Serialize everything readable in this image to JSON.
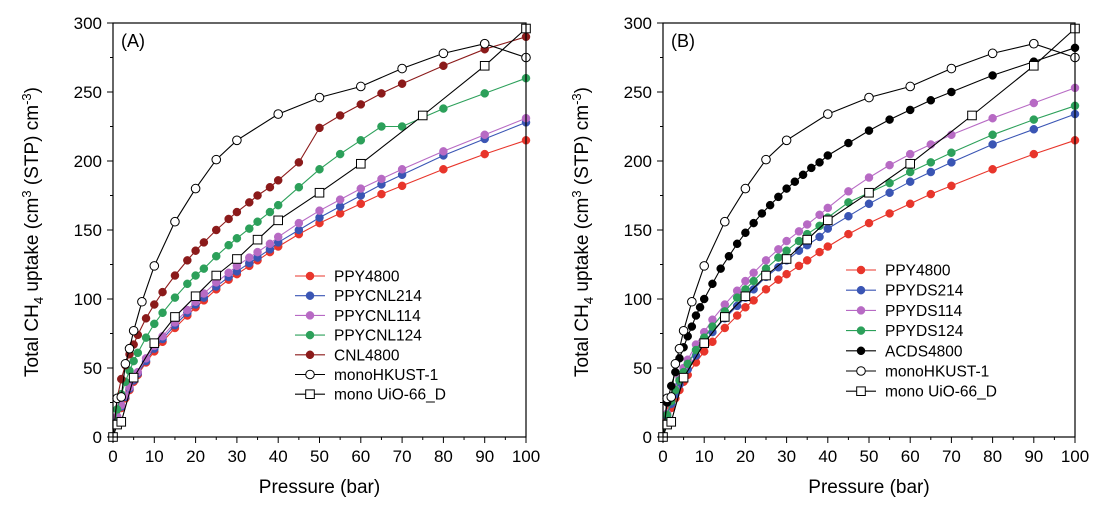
{
  "chart_data": [
    {
      "type": "line",
      "panel_label": "(A)",
      "xlabel": "Pressure (bar)",
      "ylabel": {
        "pre": "Total CH",
        "sub1": "4",
        "mid": " uptake (cm",
        "sup1": "3",
        "mid2": " (STP) cm",
        "sup2": "-3",
        "post": ")"
      },
      "xlim": [
        0,
        100
      ],
      "ylim": [
        0,
        300
      ],
      "xticks": [
        0,
        10,
        20,
        30,
        40,
        50,
        60,
        70,
        80,
        90,
        100
      ],
      "yticks": [
        0,
        50,
        100,
        150,
        200,
        250,
        300
      ],
      "grid": false,
      "legend_position": "bottom-right",
      "series": [
        {
          "name": "PPY4800",
          "color": "#e8352b",
          "marker": "filled",
          "x": [
            0,
            1,
            2,
            3,
            4,
            5,
            6,
            8,
            10,
            12,
            15,
            18,
            20,
            22,
            25,
            28,
            30,
            33,
            35,
            38,
            40,
            45,
            50,
            55,
            60,
            65,
            70,
            80,
            90,
            100
          ],
          "y": [
            0,
            13,
            21,
            28,
            34,
            40,
            45,
            54,
            62,
            69,
            79,
            88,
            94,
            99,
            107,
            114,
            118,
            124,
            128,
            134,
            138,
            147,
            155,
            162,
            169,
            176,
            182,
            194,
            205,
            215
          ]
        },
        {
          "name": "PPYCNL214",
          "color": "#3a55b4",
          "marker": "filled",
          "x": [
            0,
            1,
            2,
            3,
            4,
            5,
            6,
            8,
            10,
            12,
            15,
            18,
            20,
            22,
            25,
            28,
            30,
            33,
            35,
            38,
            40,
            45,
            50,
            55,
            60,
            65,
            70,
            80,
            90,
            100
          ],
          "y": [
            0,
            14,
            22,
            29,
            35,
            41,
            46,
            55,
            64,
            71,
            81,
            90,
            96,
            101,
            109,
            116,
            120,
            126,
            130,
            136,
            141,
            150,
            159,
            167,
            175,
            183,
            190,
            204,
            216,
            228
          ]
        },
        {
          "name": "PPYCNL114",
          "color": "#b76ac4",
          "marker": "filled",
          "x": [
            0,
            1,
            2,
            3,
            4,
            5,
            6,
            8,
            10,
            12,
            15,
            18,
            20,
            22,
            25,
            28,
            30,
            33,
            35,
            38,
            40,
            45,
            50,
            55,
            60,
            65,
            70,
            80,
            90,
            100
          ],
          "y": [
            0,
            15,
            23,
            30,
            36,
            42,
            47,
            57,
            66,
            73,
            83,
            92,
            98,
            104,
            112,
            119,
            124,
            130,
            134,
            140,
            145,
            155,
            164,
            172,
            180,
            187,
            194,
            207,
            219,
            231
          ]
        },
        {
          "name": "PPYCNL124",
          "color": "#2ca05a",
          "marker": "filled",
          "x": [
            0,
            1,
            2,
            3,
            4,
            5,
            6,
            8,
            10,
            12,
            15,
            18,
            20,
            22,
            25,
            28,
            30,
            33,
            35,
            38,
            40,
            45,
            50,
            55,
            60,
            65,
            70,
            80,
            90,
            100
          ],
          "y": [
            0,
            20,
            31,
            40,
            48,
            55,
            61,
            72,
            82,
            90,
            101,
            111,
            117,
            122,
            131,
            139,
            144,
            151,
            156,
            163,
            168,
            181,
            194,
            205,
            215,
            225,
            225,
            238,
            249,
            260
          ]
        },
        {
          "name": "CNL4800",
          "color": "#8b1a1a",
          "marker": "filled",
          "x": [
            0,
            1,
            2,
            3,
            4,
            5,
            6,
            8,
            10,
            12,
            15,
            18,
            20,
            22,
            25,
            28,
            30,
            33,
            35,
            38,
            40,
            45,
            50,
            55,
            60,
            65,
            70,
            80,
            90,
            100
          ],
          "y": [
            0,
            28,
            42,
            52,
            60,
            67,
            74,
            86,
            96,
            105,
            117,
            128,
            135,
            141,
            150,
            158,
            163,
            170,
            175,
            181,
            186,
            199,
            224,
            233,
            241,
            249,
            256,
            269,
            281,
            290
          ]
        },
        {
          "name": "monoHKUST-1",
          "color": "#000000",
          "marker": "open-circle",
          "x": [
            0,
            1,
            2,
            3,
            4,
            5,
            7,
            10,
            15,
            20,
            25,
            30,
            40,
            50,
            60,
            70,
            80,
            90,
            100
          ],
          "y": [
            0,
            28,
            29,
            53,
            64,
            77,
            98,
            124,
            156,
            180,
            201,
            215,
            234,
            246,
            254,
            267,
            278,
            285,
            275
          ]
        },
        {
          "name": "mono UiO-66_D",
          "color": "#000000",
          "marker": "open-square",
          "x": [
            0,
            1,
            2,
            5,
            10,
            15,
            20,
            25,
            30,
            35,
            40,
            50,
            60,
            75,
            90,
            100
          ],
          "y": [
            0,
            9,
            11,
            43,
            68,
            87,
            102,
            117,
            129,
            143,
            157,
            177,
            198,
            233,
            269,
            296
          ]
        }
      ]
    },
    {
      "type": "line",
      "panel_label": "(B)",
      "xlabel": "Pressure (bar)",
      "ylabel": {
        "pre": "Total CH",
        "sub1": "4",
        "mid": " uptake (cm",
        "sup1": "3",
        "mid2": " (STP) cm",
        "sup2": "-3",
        "post": ")"
      },
      "xlim": [
        0,
        100
      ],
      "ylim": [
        0,
        300
      ],
      "xticks": [
        0,
        10,
        20,
        30,
        40,
        50,
        60,
        70,
        80,
        90,
        100
      ],
      "yticks": [
        0,
        50,
        100,
        150,
        200,
        250,
        300
      ],
      "grid": false,
      "legend_position": "bottom-right",
      "series": [
        {
          "name": "PPY4800",
          "color": "#e8352b",
          "marker": "filled",
          "x": [
            0,
            1,
            2,
            3,
            4,
            5,
            6,
            8,
            10,
            12,
            15,
            18,
            20,
            22,
            25,
            28,
            30,
            33,
            35,
            38,
            40,
            45,
            50,
            55,
            60,
            65,
            70,
            80,
            90,
            100
          ],
          "y": [
            0,
            13,
            21,
            28,
            34,
            40,
            45,
            54,
            62,
            69,
            79,
            88,
            94,
            99,
            107,
            114,
            118,
            124,
            128,
            134,
            138,
            147,
            155,
            162,
            169,
            176,
            182,
            194,
            205,
            215
          ]
        },
        {
          "name": "PPYDS214",
          "color": "#3a55b4",
          "marker": "filled",
          "x": [
            0,
            1,
            2,
            3,
            4,
            5,
            6,
            8,
            10,
            12,
            15,
            18,
            20,
            22,
            25,
            28,
            30,
            33,
            35,
            38,
            40,
            45,
            50,
            55,
            60,
            65,
            70,
            80,
            90,
            100
          ],
          "y": [
            0,
            15,
            24,
            31,
            38,
            44,
            49,
            59,
            68,
            76,
            86,
            95,
            101,
            107,
            116,
            123,
            128,
            135,
            139,
            145,
            151,
            160,
            169,
            177,
            185,
            192,
            199,
            212,
            223,
            234
          ]
        },
        {
          "name": "PPYDS114",
          "color": "#b76ac4",
          "marker": "filled",
          "x": [
            0,
            1,
            2,
            3,
            4,
            5,
            6,
            8,
            10,
            12,
            15,
            18,
            20,
            22,
            25,
            28,
            30,
            33,
            35,
            38,
            40,
            45,
            50,
            55,
            60,
            65,
            70,
            80,
            90,
            100
          ],
          "y": [
            0,
            17,
            27,
            35,
            43,
            50,
            56,
            67,
            76,
            85,
            96,
            106,
            113,
            119,
            128,
            136,
            142,
            149,
            154,
            161,
            166,
            178,
            188,
            197,
            205,
            212,
            219,
            231,
            242,
            253
          ]
        },
        {
          "name": "PPYDS124",
          "color": "#2ca05a",
          "marker": "filled",
          "x": [
            0,
            1,
            2,
            3,
            4,
            5,
            6,
            8,
            10,
            12,
            15,
            18,
            20,
            22,
            25,
            28,
            30,
            33,
            35,
            38,
            40,
            45,
            50,
            55,
            60,
            65,
            70,
            80,
            90,
            100
          ],
          "y": [
            0,
            16,
            26,
            34,
            41,
            47,
            53,
            63,
            72,
            80,
            91,
            101,
            107,
            113,
            122,
            130,
            135,
            142,
            147,
            153,
            159,
            170,
            177,
            184,
            192,
            199,
            206,
            219,
            230,
            240
          ]
        },
        {
          "name": "ACDS4800",
          "color": "#000000",
          "marker": "filled",
          "x": [
            0,
            1,
            2,
            3,
            4,
            5,
            6,
            7,
            8,
            9,
            10,
            12,
            14,
            16,
            18,
            20,
            22,
            24,
            26,
            28,
            30,
            32,
            34,
            36,
            38,
            40,
            45,
            50,
            55,
            60,
            65,
            70,
            80,
            90,
            100
          ],
          "y": [
            0,
            25,
            37,
            47,
            57,
            65,
            73,
            80,
            88,
            94,
            100,
            111,
            122,
            131,
            140,
            148,
            155,
            162,
            168,
            174,
            180,
            185,
            190,
            195,
            199,
            204,
            213,
            222,
            230,
            237,
            244,
            250,
            262,
            272,
            282
          ]
        },
        {
          "name": "monoHKUST-1",
          "color": "#000000",
          "marker": "open-circle",
          "x": [
            0,
            1,
            2,
            3,
            4,
            5,
            7,
            10,
            15,
            20,
            25,
            30,
            40,
            50,
            60,
            70,
            80,
            90,
            100
          ],
          "y": [
            0,
            28,
            29,
            53,
            64,
            77,
            98,
            124,
            156,
            180,
            201,
            215,
            234,
            246,
            254,
            267,
            278,
            285,
            275
          ]
        },
        {
          "name": "mono UiO-66_D",
          "color": "#000000",
          "marker": "open-square",
          "x": [
            0,
            1,
            2,
            5,
            10,
            15,
            20,
            25,
            30,
            35,
            40,
            50,
            60,
            75,
            90,
            100
          ],
          "y": [
            0,
            9,
            11,
            43,
            68,
            87,
            102,
            117,
            129,
            143,
            157,
            177,
            198,
            233,
            269,
            296
          ]
        }
      ]
    }
  ]
}
